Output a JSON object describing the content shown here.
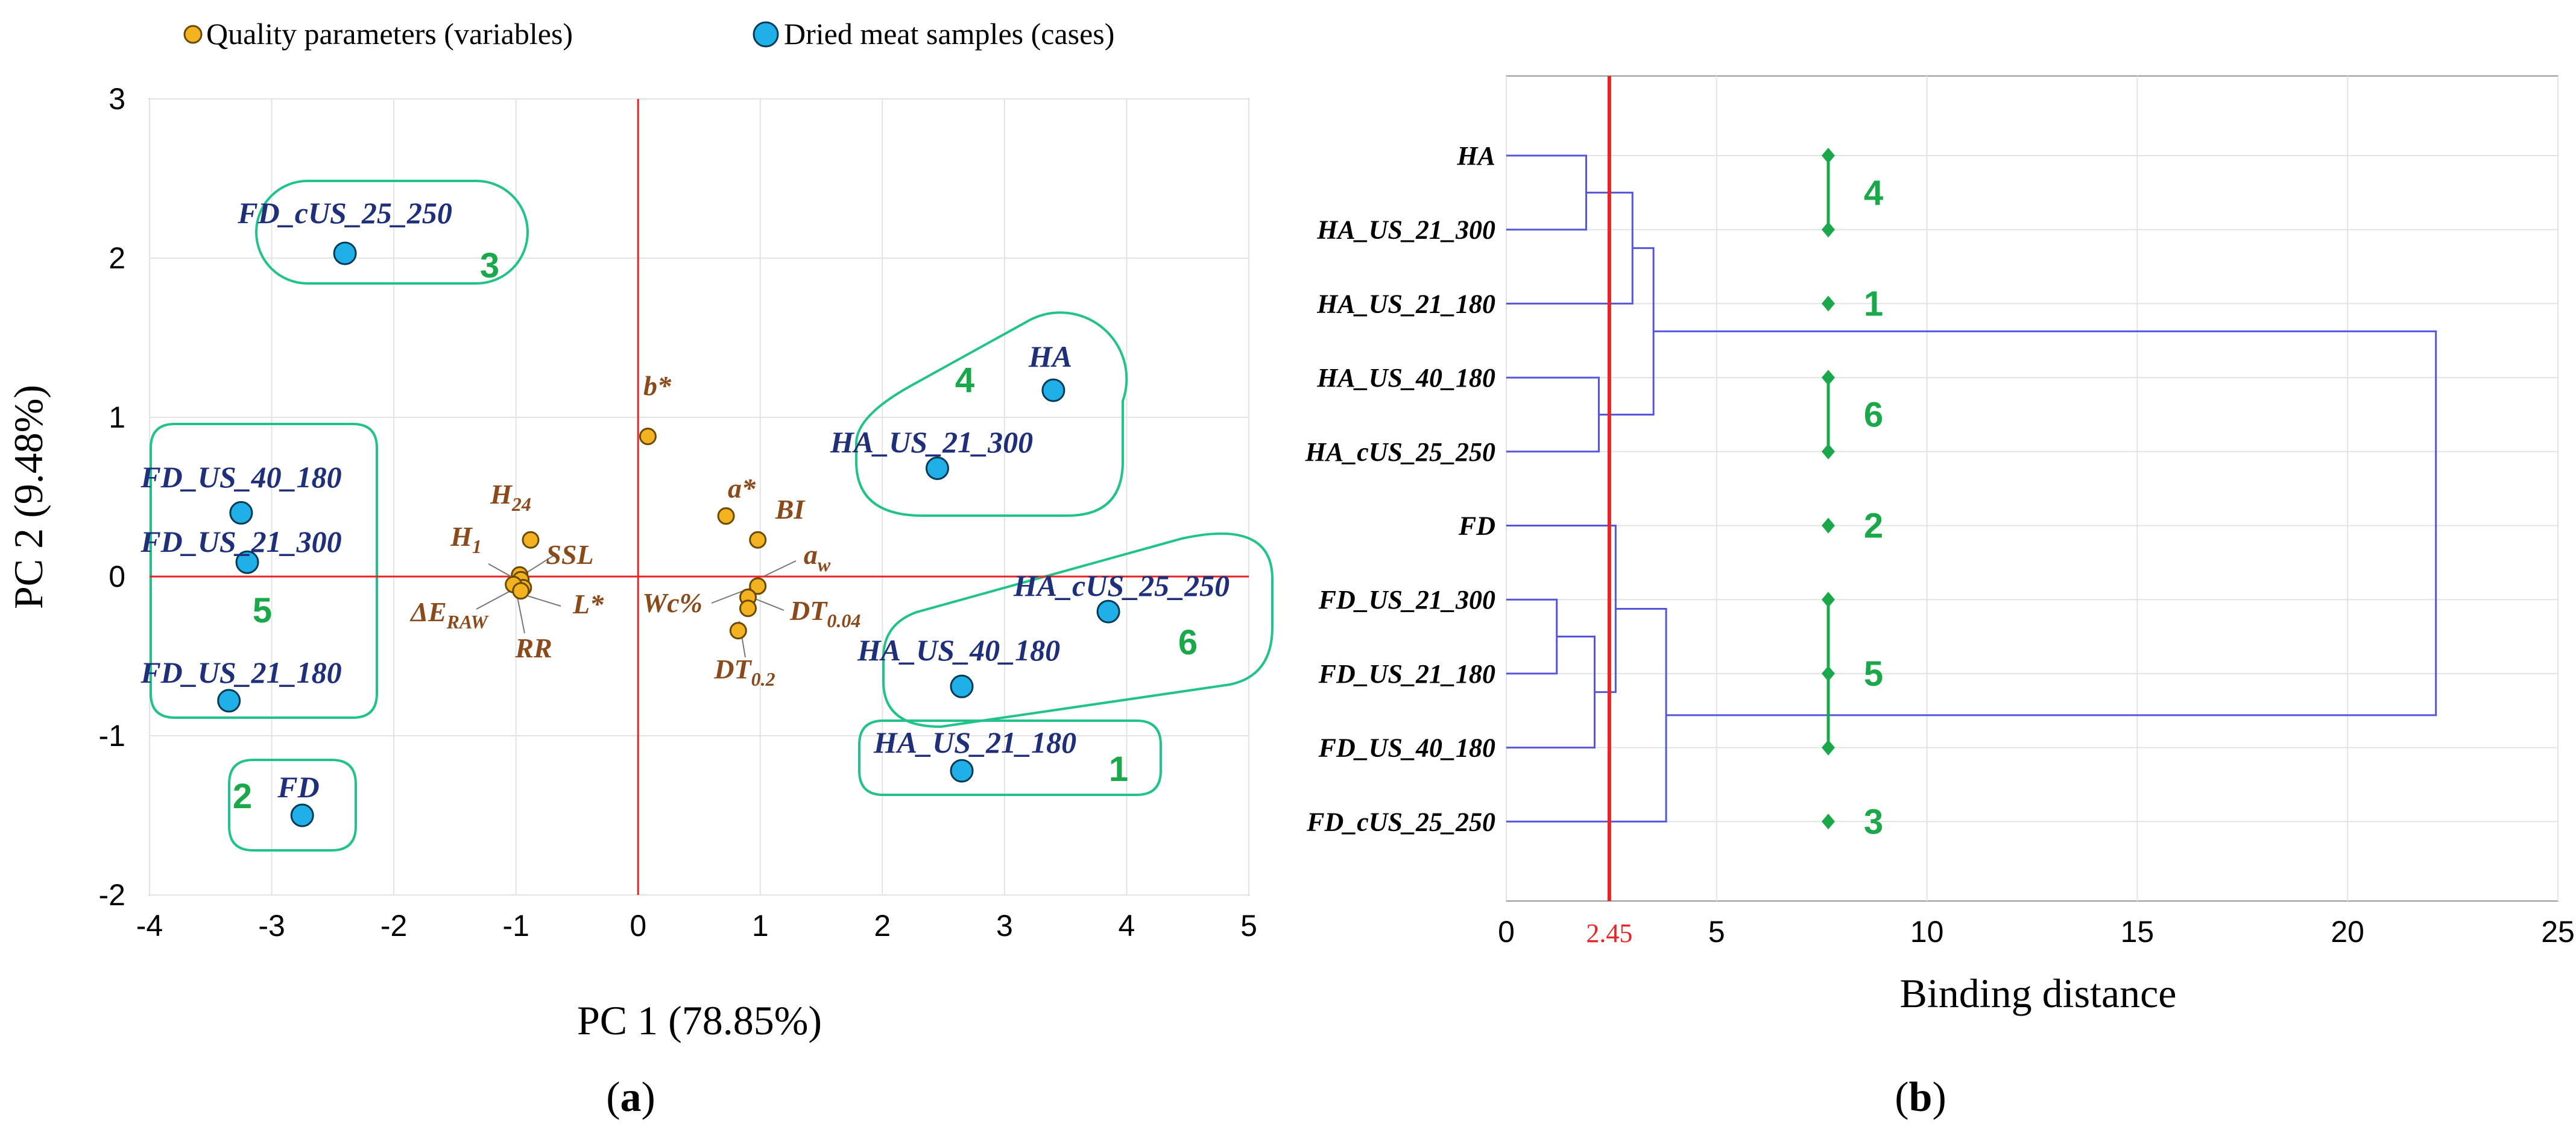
{
  "colors": {
    "case": "#1eb0e6",
    "variable": "#f3b21f",
    "group_box": "#22c38a",
    "group_number": "#1aa84a",
    "ref_line": "#ee2222",
    "dendro_line": "#5555dd",
    "grid": "#e3e3e3"
  },
  "legend": {
    "variables": "Quality parameters (variables)",
    "cases": "Dried meat samples (cases)"
  },
  "captions": {
    "a_open": "(",
    "a": "a",
    "a_close": ")",
    "b_open": "(",
    "b": "b",
    "b_close": ")"
  },
  "chart_data": [
    {
      "type": "scatter",
      "title": "",
      "xlabel": "PC 1 (78.85%)",
      "ylabel": "PC 2 (9.48%)",
      "xlim": [
        -4,
        5
      ],
      "ylim": [
        -2,
        3
      ],
      "xticks": [
        "-4",
        "-3",
        "-2",
        "-1",
        "0",
        "1",
        "2",
        "3",
        "4",
        "5"
      ],
      "yticks": [
        "-2",
        "-1",
        "0",
        "1",
        "2",
        "3"
      ],
      "cases": [
        {
          "label": "FD_cUS_25_250",
          "x": -2.4,
          "y": 2.03
        },
        {
          "label": "HA",
          "x": 3.4,
          "y": 1.17
        },
        {
          "label": "HA_US_21_300",
          "x": 2.45,
          "y": 0.68
        },
        {
          "label": "FD_US_40_180",
          "x": -3.25,
          "y": 0.4
        },
        {
          "label": "FD_US_21_300",
          "x": -3.2,
          "y": 0.09
        },
        {
          "label": "HA_cUS_25_250",
          "x": 3.85,
          "y": -0.22
        },
        {
          "label": "HA_US_40_180",
          "x": 2.65,
          "y": -0.69
        },
        {
          "label": "FD_US_21_180",
          "x": -3.35,
          "y": -0.78
        },
        {
          "label": "HA_US_21_180",
          "x": 2.65,
          "y": -1.22
        },
        {
          "label": "FD",
          "x": -2.75,
          "y": -1.5
        }
      ],
      "variables": [
        {
          "label": "b*",
          "x": 0.08,
          "y": 0.88
        },
        {
          "label": "a*",
          "x": 0.72,
          "y": 0.38
        },
        {
          "label": "BI",
          "x": 0.98,
          "y": 0.23
        },
        {
          "label": "a",
          "sub": "w",
          "x": 0.98,
          "y": -0.06
        },
        {
          "label": "Wc%",
          "x": 0.9,
          "y": -0.13
        },
        {
          "label": "DT",
          "sub": "0.04",
          "x": 0.9,
          "y": -0.2
        },
        {
          "label": "DT",
          "sub": "0.2",
          "x": 0.82,
          "y": -0.34
        },
        {
          "label": "H",
          "sub": "24",
          "x": -0.88,
          "y": 0.23
        },
        {
          "label": "H",
          "sub": "1",
          "x": -0.97,
          "y": 0.01
        },
        {
          "label": "SSL",
          "x": -0.96,
          "y": -0.02
        },
        {
          "label": "L*",
          "x": -0.94,
          "y": -0.07
        },
        {
          "label": "ΔE",
          "sub": "RAW",
          "x": -1.02,
          "y": -0.05
        },
        {
          "label": "RR",
          "x": -0.96,
          "y": -0.09
        }
      ],
      "groups": [
        "1",
        "2",
        "3",
        "4",
        "5",
        "6"
      ]
    },
    {
      "type": "dendrogram",
      "xlabel": "Binding distance",
      "xlim": [
        0,
        25
      ],
      "xticks": [
        "0",
        "5",
        "10",
        "15",
        "20",
        "25"
      ],
      "cut_value": 2.45,
      "cut_label": "2.45",
      "leaves": [
        "HA",
        "HA_US_21_300",
        "HA_US_21_180",
        "HA_US_40_180",
        "HA_cUS_25_250",
        "FD",
        "FD_US_21_300",
        "FD_US_21_180",
        "FD_US_40_180",
        "FD_cUS_25_250"
      ],
      "merges": [
        {
          "a": 0,
          "b": 1,
          "h": 1.9
        },
        {
          "a": 6,
          "b": 7,
          "h": 1.2
        },
        {
          "a": 3,
          "b": 4,
          "h": 2.2
        },
        {
          "a": 10,
          "b": 2,
          "h": 3.0
        },
        {
          "a": 11,
          "b": 8,
          "h": 2.1
        },
        {
          "a": 12,
          "b": 13,
          "h": 3.5
        },
        {
          "a": 5,
          "b": 14,
          "h": 2.6
        },
        {
          "a": 16,
          "b": 9,
          "h": 3.8
        },
        {
          "a": 15,
          "b": 17,
          "h": 22.1
        }
      ],
      "cluster_markers": [
        {
          "number": "4",
          "leaves": [
            0,
            1
          ]
        },
        {
          "number": "1",
          "leaves": [
            2
          ]
        },
        {
          "number": "6",
          "leaves": [
            3,
            4
          ]
        },
        {
          "number": "2",
          "leaves": [
            5
          ]
        },
        {
          "number": "5",
          "leaves": [
            6,
            7,
            8
          ]
        },
        {
          "number": "3",
          "leaves": [
            9
          ]
        }
      ]
    }
  ]
}
